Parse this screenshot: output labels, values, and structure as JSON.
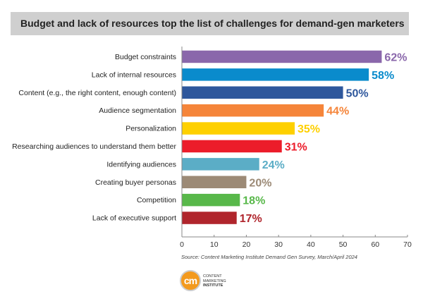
{
  "chart_data": {
    "type": "bar",
    "orientation": "horizontal",
    "title": "Budget and lack of resources top the list of challenges for demand-gen marketers",
    "categories": [
      "Budget constraints",
      "Lack of internal resources",
      "Content (e.g., the right content, enough content)",
      "Audience segmentation",
      "Personalization",
      "Researching audiences to understand them better",
      "Identifying audiences",
      "Creating buyer personas",
      "Competition",
      "Lack of executive support"
    ],
    "values": [
      62,
      58,
      50,
      44,
      35,
      31,
      24,
      20,
      18,
      17
    ],
    "data_labels": [
      "62%",
      "58%",
      "50%",
      "44%",
      "35%",
      "31%",
      "24%",
      "20%",
      "18%",
      "17%"
    ],
    "colors": [
      "#8a67ab",
      "#0a8bcc",
      "#2e579c",
      "#f5853a",
      "#fed000",
      "#ec1c2a",
      "#5badc6",
      "#9c8a76",
      "#58b84a",
      "#b0252c"
    ],
    "xlim": [
      0,
      70
    ],
    "xticks": [
      0,
      10,
      20,
      30,
      40,
      50,
      60,
      70
    ],
    "grid": false,
    "legend": "none",
    "xlabel": "",
    "ylabel": ""
  },
  "source": "Source: Content Marketing Institute Demand Gen Survey, March/April 2024",
  "logo": {
    "mark": "cm",
    "text": [
      "CONTENT",
      "MARKETING",
      "INSTITUTE"
    ],
    "color": "#f39a1e"
  }
}
